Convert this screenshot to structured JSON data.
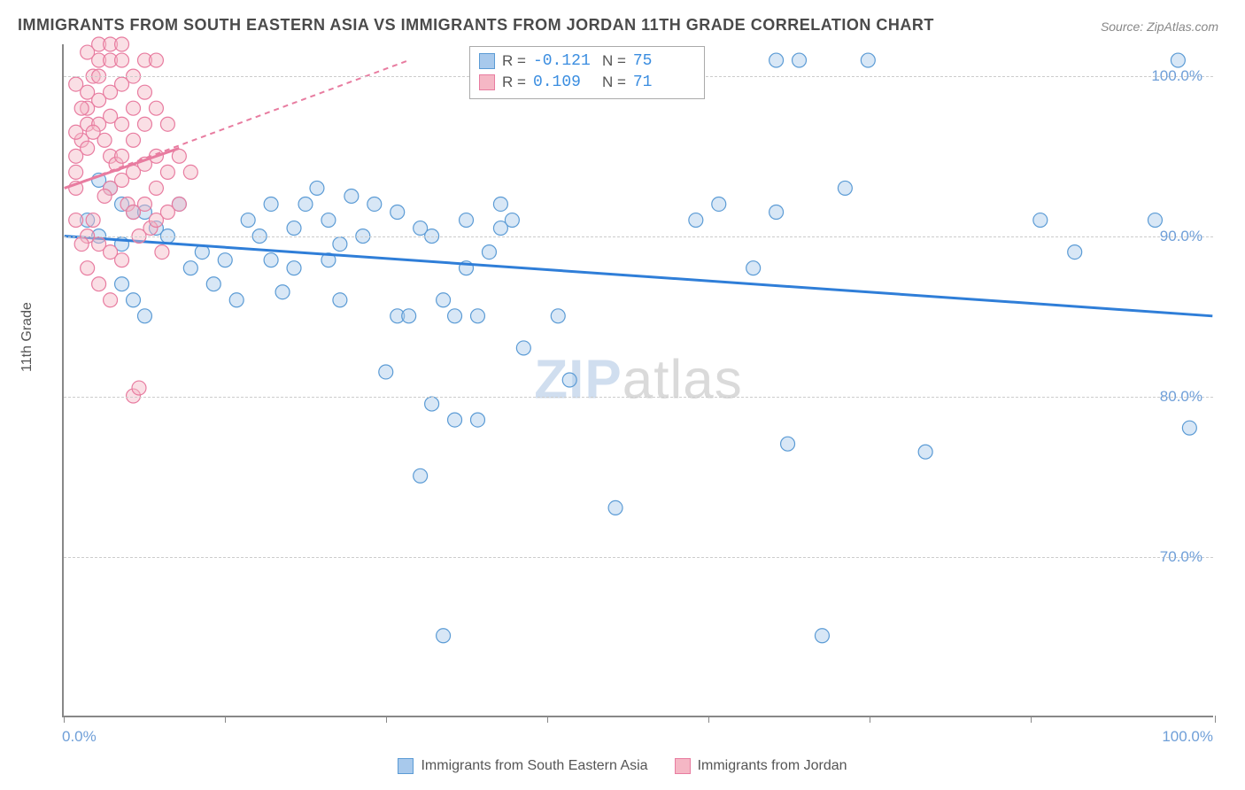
{
  "title": "IMMIGRANTS FROM SOUTH EASTERN ASIA VS IMMIGRANTS FROM JORDAN 11TH GRADE CORRELATION CHART",
  "source": "Source: ZipAtlas.com",
  "y_axis_label": "11th Grade",
  "watermark_zip": "ZIP",
  "watermark_atlas": "atlas",
  "chart": {
    "type": "scatter",
    "background_color": "#ffffff",
    "grid_color": "#cccccc",
    "axis_color": "#888888",
    "xlim": [
      0,
      100
    ],
    "ylim": [
      60,
      102
    ],
    "y_ticks": [
      70,
      80,
      90,
      100
    ],
    "y_tick_labels": [
      "70.0%",
      "80.0%",
      "90.0%",
      "100.0%"
    ],
    "x_ticks": [
      0,
      14,
      28,
      42,
      56,
      70,
      84,
      100
    ],
    "x_tick_labels_left": "0.0%",
    "x_tick_labels_right": "100.0%",
    "tick_label_color": "#6f9fd8",
    "tick_label_fontsize": 17,
    "axis_label_color": "#555555",
    "axis_label_fontsize": 16,
    "marker_radius": 8,
    "marker_opacity": 0.45,
    "series": [
      {
        "name": "Immigrants from South Eastern Asia",
        "color_fill": "#a8c9ec",
        "color_stroke": "#5b9bd5",
        "R": "-0.121",
        "N": "75",
        "trend": {
          "x1": 0,
          "y1": 90,
          "x2": 100,
          "y2": 85,
          "stroke": "#2f7ed8",
          "width": 3,
          "dash": "none"
        },
        "points": [
          [
            3,
            93.5
          ],
          [
            4,
            93
          ],
          [
            5,
            92
          ],
          [
            6,
            91.5
          ],
          [
            2,
            91
          ],
          [
            3,
            90
          ],
          [
            5,
            89.5
          ],
          [
            7,
            91.5
          ],
          [
            8,
            90.5
          ],
          [
            9,
            90
          ],
          [
            10,
            92
          ],
          [
            11,
            88
          ],
          [
            12,
            89
          ],
          [
            13,
            87
          ],
          [
            14,
            88.5
          ],
          [
            15,
            86
          ],
          [
            16,
            91
          ],
          [
            17,
            90
          ],
          [
            18,
            92
          ],
          [
            18,
            88.5
          ],
          [
            19,
            86.5
          ],
          [
            20,
            90.5
          ],
          [
            20,
            88
          ],
          [
            21,
            92
          ],
          [
            22,
            93
          ],
          [
            23,
            91
          ],
          [
            23,
            88.5
          ],
          [
            24,
            86
          ],
          [
            24,
            89.5
          ],
          [
            25,
            92.5
          ],
          [
            26,
            90
          ],
          [
            27,
            92
          ],
          [
            28,
            81.5
          ],
          [
            29,
            91.5
          ],
          [
            29,
            85
          ],
          [
            30,
            85
          ],
          [
            31,
            90.5
          ],
          [
            31,
            75
          ],
          [
            32,
            90
          ],
          [
            32,
            79.5
          ],
          [
            33,
            65
          ],
          [
            33,
            86
          ],
          [
            34,
            78.5
          ],
          [
            34,
            85
          ],
          [
            35,
            88
          ],
          [
            35,
            91
          ],
          [
            36,
            85
          ],
          [
            36,
            78.5
          ],
          [
            37,
            89
          ],
          [
            38,
            90.5
          ],
          [
            38,
            92
          ],
          [
            39,
            91
          ],
          [
            40,
            83
          ],
          [
            43,
            85
          ],
          [
            44,
            81
          ],
          [
            48,
            73
          ],
          [
            55,
            91
          ],
          [
            57,
            92
          ],
          [
            60,
            88
          ],
          [
            62,
            91.5
          ],
          [
            62,
            101
          ],
          [
            63,
            77
          ],
          [
            64,
            101
          ],
          [
            66,
            65
          ],
          [
            68,
            93
          ],
          [
            70,
            101
          ],
          [
            75,
            76.5
          ],
          [
            85,
            91
          ],
          [
            88,
            89
          ],
          [
            95,
            91
          ],
          [
            97,
            101
          ],
          [
            98,
            78
          ],
          [
            5,
            87
          ],
          [
            7,
            85
          ],
          [
            6,
            86
          ]
        ]
      },
      {
        "name": "Immigrants from Jordan",
        "color_fill": "#f5b7c5",
        "color_stroke": "#e87ca0",
        "R": "0.109",
        "N": "71",
        "trend": {
          "x1": 0,
          "y1": 93,
          "x2": 30,
          "y2": 101,
          "stroke": "#e87ca0",
          "width": 2,
          "dash": "6,5"
        },
        "trend_solid": {
          "x1": 0,
          "y1": 93,
          "x2": 10,
          "y2": 95.5,
          "stroke": "#e87ca0",
          "width": 3
        },
        "points": [
          [
            1,
            93
          ],
          [
            1,
            94
          ],
          [
            1,
            95
          ],
          [
            1.5,
            96
          ],
          [
            2,
            97
          ],
          [
            2,
            98
          ],
          [
            2,
            99
          ],
          [
            2.5,
            100
          ],
          [
            3,
            101
          ],
          [
            3,
            100
          ],
          [
            3,
            98.5
          ],
          [
            3,
            97
          ],
          [
            3.5,
            96
          ],
          [
            4,
            101
          ],
          [
            4,
            99
          ],
          [
            4,
            97.5
          ],
          [
            4,
            95
          ],
          [
            4,
            93
          ],
          [
            4.5,
            94.5
          ],
          [
            5,
            101
          ],
          [
            5,
            99.5
          ],
          [
            5,
            97
          ],
          [
            5,
            95
          ],
          [
            5,
            93.5
          ],
          [
            5.5,
            92
          ],
          [
            6,
            100
          ],
          [
            6,
            98
          ],
          [
            6,
            96
          ],
          [
            6,
            94
          ],
          [
            6,
            91.5
          ],
          [
            6.5,
            90
          ],
          [
            7,
            99
          ],
          [
            7,
            97
          ],
          [
            7,
            94.5
          ],
          [
            7,
            92
          ],
          [
            7.5,
            90.5
          ],
          [
            8,
            98
          ],
          [
            8,
            95
          ],
          [
            8,
            93
          ],
          [
            8,
            91
          ],
          [
            8.5,
            89
          ],
          [
            9,
            97
          ],
          [
            9,
            94
          ],
          [
            9,
            91.5
          ],
          [
            10,
            95
          ],
          [
            10,
            92
          ],
          [
            11,
            94
          ],
          [
            1,
            91
          ],
          [
            2,
            90
          ],
          [
            3,
            89.5
          ],
          [
            4,
            89
          ],
          [
            5,
            88.5
          ],
          [
            2,
            88
          ],
          [
            3,
            87
          ],
          [
            4,
            86
          ],
          [
            1.5,
            89.5
          ],
          [
            2.5,
            91
          ],
          [
            3.5,
            92.5
          ],
          [
            1,
            96.5
          ],
          [
            2,
            95.5
          ],
          [
            6,
            80
          ],
          [
            6.5,
            80.5
          ],
          [
            3,
            102
          ],
          [
            4,
            102
          ],
          [
            5,
            102
          ],
          [
            2,
            101.5
          ],
          [
            7,
            101
          ],
          [
            8,
            101
          ],
          [
            1,
            99.5
          ],
          [
            1.5,
            98
          ],
          [
            2.5,
            96.5
          ]
        ]
      }
    ]
  },
  "legend": {
    "series1": "Immigrants from South Eastern Asia",
    "series2": "Immigrants from Jordan"
  },
  "corr_box": {
    "r_label": "R =",
    "n_label": "N ="
  }
}
